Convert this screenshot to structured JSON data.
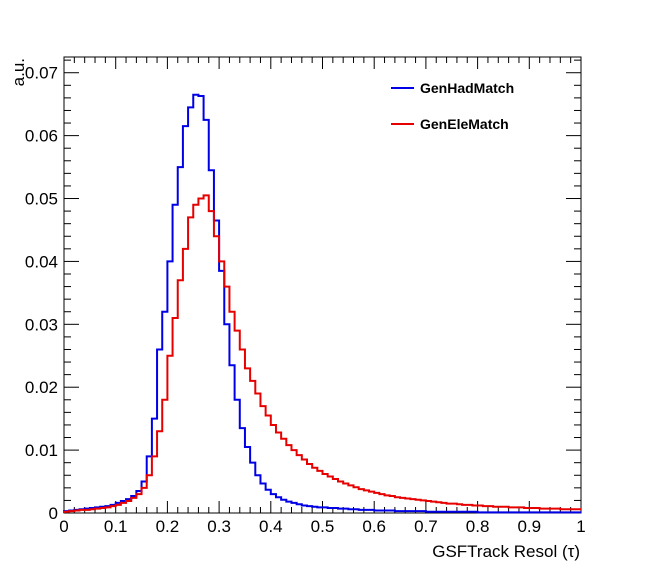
{
  "chart_data": {
    "type": "step-histogram",
    "xlabel": "GSFTrack Resol (τ)",
    "ylabel": "a.u.",
    "xlim": [
      0,
      1
    ],
    "ylim": [
      0,
      0.0725
    ],
    "x_ticks": [
      0,
      0.1,
      0.2,
      0.3,
      0.4,
      0.5,
      0.6,
      0.7,
      0.8,
      0.9,
      1
    ],
    "x_tick_labels": [
      "0",
      "0.1",
      "0.2",
      "0.3",
      "0.4",
      "0.5",
      "0.6",
      "0.7",
      "0.8",
      "0.9",
      "1"
    ],
    "y_ticks": [
      0,
      0.01,
      0.02,
      0.03,
      0.04,
      0.05,
      0.06,
      0.07
    ],
    "y_tick_labels": [
      "0",
      "0.01",
      "0.02",
      "0.03",
      "0.04",
      "0.05",
      "0.06",
      "0.07"
    ],
    "bin_width": 0.01,
    "grid": false,
    "legend_position": "top-right",
    "series": [
      {
        "name": "GenHadMatch",
        "color": "#0000e6",
        "values": [
          0.0003,
          0.0004,
          0.0005,
          0.0006,
          0.0007,
          0.0008,
          0.0009,
          0.001,
          0.0011,
          0.0013,
          0.0016,
          0.0019,
          0.0022,
          0.0027,
          0.0035,
          0.005,
          0.009,
          0.015,
          0.026,
          0.032,
          0.04,
          0.049,
          0.055,
          0.0615,
          0.0645,
          0.0665,
          0.0663,
          0.0625,
          0.0545,
          0.0465,
          0.0385,
          0.03,
          0.0235,
          0.018,
          0.0135,
          0.0105,
          0.008,
          0.006,
          0.0047,
          0.0037,
          0.003,
          0.0025,
          0.0021,
          0.0018,
          0.0016,
          0.0014,
          0.0012,
          0.0011,
          0.001,
          0.0009,
          0.0009,
          0.0008,
          0.0008,
          0.0007,
          0.0007,
          0.0006,
          0.0006,
          0.0005,
          0.0005,
          0.0005,
          0.0004,
          0.0004,
          0.0004,
          0.0004,
          0.0003,
          0.0003,
          0.0003,
          0.0003,
          0.0003,
          0.0003,
          0.0002,
          0.0002,
          0.0002,
          0.0002,
          0.0002,
          0.0002,
          0.0002,
          0.0002,
          0.0002,
          0.0002,
          0.0001,
          0.0001,
          0.0001,
          0.0001,
          0.0001,
          0.0001,
          0.0001,
          0.0001,
          0.0001,
          0.0001,
          0.0001,
          0.0001,
          0.0001,
          0.0001,
          0.0001,
          0.0001,
          0.0001,
          0.0001,
          0.0001,
          0.0001
        ]
      },
      {
        "name": "GenEleMatch",
        "color": "#e60000",
        "values": [
          0.0002,
          0.0003,
          0.0004,
          0.0005,
          0.0005,
          0.0006,
          0.0007,
          0.0008,
          0.0009,
          0.0011,
          0.0013,
          0.0016,
          0.0019,
          0.0024,
          0.003,
          0.004,
          0.006,
          0.009,
          0.013,
          0.018,
          0.025,
          0.031,
          0.037,
          0.042,
          0.047,
          0.049,
          0.05,
          0.0505,
          0.048,
          0.044,
          0.04,
          0.036,
          0.032,
          0.029,
          0.026,
          0.023,
          0.021,
          0.019,
          0.017,
          0.0155,
          0.014,
          0.0128,
          0.0118,
          0.0108,
          0.01,
          0.0092,
          0.0085,
          0.0078,
          0.0072,
          0.0067,
          0.0062,
          0.0058,
          0.0054,
          0.005,
          0.0047,
          0.0044,
          0.0041,
          0.0038,
          0.0036,
          0.0034,
          0.0032,
          0.003,
          0.0028,
          0.0027,
          0.0025,
          0.0024,
          0.0023,
          0.0022,
          0.0021,
          0.002,
          0.0019,
          0.0018,
          0.0017,
          0.0016,
          0.0015,
          0.0015,
          0.0014,
          0.0013,
          0.0013,
          0.0012,
          0.0012,
          0.0011,
          0.0011,
          0.001,
          0.001,
          0.001,
          0.0009,
          0.0009,
          0.0009,
          0.0008,
          0.0008,
          0.0008,
          0.0007,
          0.0007,
          0.0007,
          0.0007,
          0.0006,
          0.0006,
          0.0006,
          0.0006
        ]
      }
    ]
  }
}
